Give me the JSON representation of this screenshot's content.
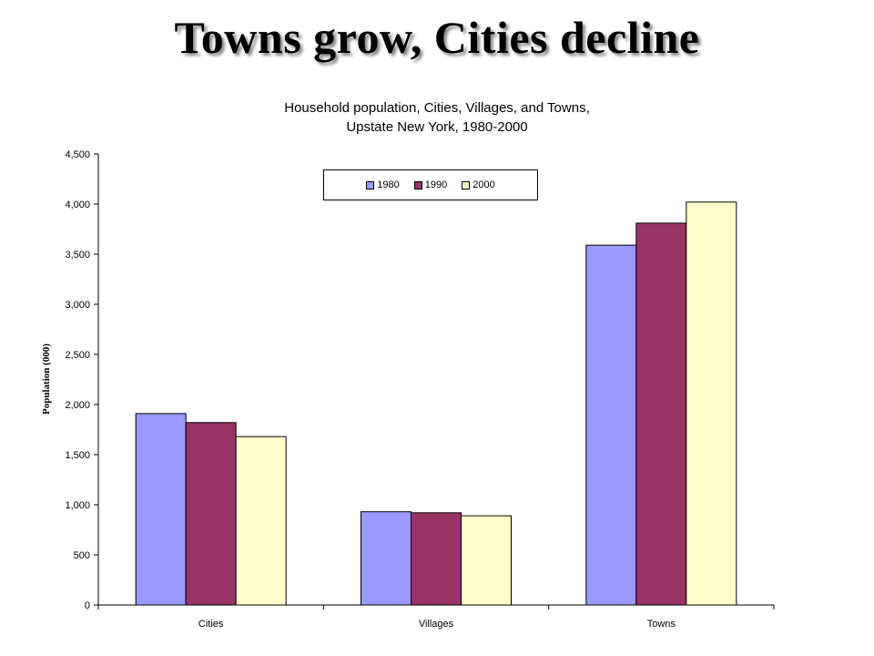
{
  "slide": {
    "title": "Towns grow, Cities decline"
  },
  "colors": {
    "1980": "#9999ff",
    "1990": "#993366",
    "2000": "#ffffcc"
  },
  "chart_data": {
    "type": "bar",
    "title_lines": [
      "Household population, Cities, Villages, and Towns,",
      "Upstate New York, 1980-2000"
    ],
    "xlabel": "",
    "ylabel": "Population (000)",
    "categories": [
      "Cities",
      "Villages",
      "Towns"
    ],
    "series": [
      {
        "name": "1980",
        "values": [
          1910,
          930,
          3590
        ]
      },
      {
        "name": "1990",
        "values": [
          1820,
          920,
          3810
        ]
      },
      {
        "name": "2000",
        "values": [
          1680,
          890,
          4020
        ]
      }
    ],
    "ylim": [
      0,
      4500
    ],
    "yticks": [
      0,
      500,
      1000,
      1500,
      2000,
      2500,
      3000,
      3500,
      4000,
      4500
    ],
    "ytick_labels": [
      "0",
      "500",
      "1,000",
      "1,500",
      "2,000",
      "2,500",
      "3,000",
      "3,500",
      "4,000",
      "4,500"
    ],
    "grid": false,
    "legend_position": "top-center"
  }
}
